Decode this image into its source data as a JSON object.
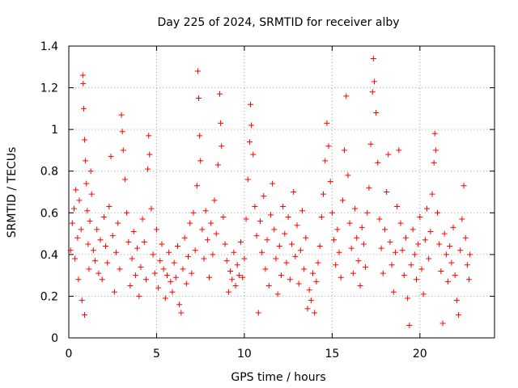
{
  "chart_data": {
    "type": "scatter",
    "title": "Day 225 of 2024, SRMTID for receiver alby",
    "xlabel": "GPS time / hours",
    "ylabel": "SRMTID / TECUs",
    "xlim": [
      0,
      24.25
    ],
    "ylim": [
      0,
      1.4
    ],
    "xticks": [
      0,
      5,
      10,
      15,
      20
    ],
    "xtick_labels": [
      "0",
      "5",
      "10",
      "15",
      "20"
    ],
    "yticks": [
      0,
      0.2,
      0.4,
      0.6,
      0.8,
      1.0,
      1.2,
      1.4
    ],
    "ytick_labels": [
      "0",
      "0.2",
      "0.4",
      "0.6",
      "0.8",
      "1",
      "1.2",
      "1.4"
    ],
    "grid": true,
    "marker": "+",
    "color": "#ff0000",
    "series": [
      {
        "name": "SRMTID",
        "points": [
          [
            0.1,
            0.42
          ],
          [
            0.2,
            0.55
          ],
          [
            0.3,
            0.62
          ],
          [
            0.35,
            0.38
          ],
          [
            0.4,
            0.71
          ],
          [
            0.5,
            0.48
          ],
          [
            0.55,
            0.28
          ],
          [
            0.6,
            0.66
          ],
          [
            0.7,
            0.52
          ],
          [
            0.75,
            0.18
          ],
          [
            0.8,
            1.26
          ],
          [
            0.82,
            1.22
          ],
          [
            0.85,
            1.1
          ],
          [
            0.9,
            0.95
          ],
          [
            0.95,
            0.85
          ],
          [
            1.0,
            0.74
          ],
          [
            1.05,
            0.61
          ],
          [
            1.1,
            0.45
          ],
          [
            1.15,
            0.33
          ],
          [
            1.2,
            0.56
          ],
          [
            0.9,
            0.11
          ],
          [
            1.25,
            0.8
          ],
          [
            1.3,
            0.69
          ],
          [
            1.4,
            0.42
          ],
          [
            1.5,
            0.37
          ],
          [
            1.6,
            0.52
          ],
          [
            1.7,
            0.31
          ],
          [
            1.8,
            0.47
          ],
          [
            1.9,
            0.28
          ],
          [
            2.0,
            0.58
          ],
          [
            2.1,
            0.44
          ],
          [
            2.2,
            0.36
          ],
          [
            2.3,
            0.63
          ],
          [
            2.4,
            0.87
          ],
          [
            2.5,
            0.49
          ],
          [
            2.6,
            0.22
          ],
          [
            2.7,
            0.41
          ],
          [
            2.8,
            0.55
          ],
          [
            2.9,
            0.33
          ],
          [
            3.0,
            1.07
          ],
          [
            3.05,
            0.99
          ],
          [
            3.1,
            0.9
          ],
          [
            3.2,
            0.76
          ],
          [
            3.3,
            0.6
          ],
          [
            3.4,
            0.46
          ],
          [
            3.5,
            0.25
          ],
          [
            3.6,
            0.38
          ],
          [
            3.7,
            0.51
          ],
          [
            3.8,
            0.3
          ],
          [
            3.9,
            0.43
          ],
          [
            4.0,
            0.2
          ],
          [
            4.1,
            0.34
          ],
          [
            4.2,
            0.57
          ],
          [
            4.3,
            0.46
          ],
          [
            4.4,
            0.28
          ],
          [
            4.5,
            0.81
          ],
          [
            4.55,
            0.97
          ],
          [
            4.6,
            0.88
          ],
          [
            4.7,
            0.62
          ],
          [
            4.8,
            0.4
          ],
          [
            4.9,
            0.31
          ],
          [
            5.0,
            0.52
          ],
          [
            5.1,
            0.24
          ],
          [
            5.2,
            0.37
          ],
          [
            5.3,
            0.45
          ],
          [
            5.4,
            0.33
          ],
          [
            5.5,
            0.19
          ],
          [
            5.6,
            0.3
          ],
          [
            5.7,
            0.41
          ],
          [
            5.8,
            0.27
          ],
          [
            5.9,
            0.22
          ],
          [
            6.0,
            0.36
          ],
          [
            6.1,
            0.29
          ],
          [
            6.2,
            0.44
          ],
          [
            6.3,
            0.16
          ],
          [
            6.4,
            0.12
          ],
          [
            6.5,
            0.33
          ],
          [
            6.6,
            0.48
          ],
          [
            6.7,
            0.26
          ],
          [
            6.8,
            0.39
          ],
          [
            6.9,
            0.55
          ],
          [
            7.0,
            0.31
          ],
          [
            7.1,
            0.6
          ],
          [
            7.2,
            0.42
          ],
          [
            7.3,
            0.73
          ],
          [
            7.35,
            1.28
          ],
          [
            7.4,
            1.15
          ],
          [
            7.45,
            0.97
          ],
          [
            7.5,
            0.85
          ],
          [
            7.6,
            0.52
          ],
          [
            7.7,
            0.38
          ],
          [
            7.8,
            0.61
          ],
          [
            7.9,
            0.47
          ],
          [
            8.0,
            0.29
          ],
          [
            8.1,
            0.55
          ],
          [
            8.2,
            0.4
          ],
          [
            8.3,
            0.66
          ],
          [
            8.4,
            0.5
          ],
          [
            8.5,
            0.83
          ],
          [
            8.6,
            1.17
          ],
          [
            8.65,
            1.03
          ],
          [
            8.7,
            0.92
          ],
          [
            8.8,
            0.58
          ],
          [
            8.9,
            0.45
          ],
          [
            9.0,
            0.37
          ],
          [
            9.1,
            0.22
          ],
          [
            9.2,
            0.32
          ],
          [
            9.3,
            0.28
          ],
          [
            9.4,
            0.41
          ],
          [
            9.5,
            0.25
          ],
          [
            9.6,
            0.35
          ],
          [
            9.7,
            0.3
          ],
          [
            9.8,
            0.46
          ],
          [
            9.9,
            0.29
          ],
          [
            10.0,
            0.38
          ],
          [
            10.1,
            0.57
          ],
          [
            10.2,
            0.76
          ],
          [
            10.3,
            0.94
          ],
          [
            10.35,
            1.12
          ],
          [
            10.4,
            1.02
          ],
          [
            10.5,
            0.88
          ],
          [
            10.6,
            0.63
          ],
          [
            10.7,
            0.49
          ],
          [
            10.8,
            0.12
          ],
          [
            10.9,
            0.56
          ],
          [
            11.0,
            0.41
          ],
          [
            11.1,
            0.68
          ],
          [
            11.2,
            0.33
          ],
          [
            11.3,
            0.47
          ],
          [
            11.4,
            0.25
          ],
          [
            11.5,
            0.59
          ],
          [
            11.6,
            0.74
          ],
          [
            11.7,
            0.52
          ],
          [
            11.8,
            0.38
          ],
          [
            11.9,
            0.21
          ],
          [
            12.0,
            0.44
          ],
          [
            12.1,
            0.3
          ],
          [
            12.2,
            0.63
          ],
          [
            12.3,
            0.5
          ],
          [
            12.4,
            0.36
          ],
          [
            12.5,
            0.58
          ],
          [
            12.6,
            0.28
          ],
          [
            12.7,
            0.45
          ],
          [
            12.8,
            0.7
          ],
          [
            12.9,
            0.39
          ],
          [
            13.0,
            0.54
          ],
          [
            13.1,
            0.26
          ],
          [
            13.2,
            0.42
          ],
          [
            13.3,
            0.61
          ],
          [
            13.4,
            0.33
          ],
          [
            13.5,
            0.48
          ],
          [
            13.6,
            0.14
          ],
          [
            13.7,
            0.23
          ],
          [
            13.8,
            0.18
          ],
          [
            13.9,
            0.31
          ],
          [
            14.0,
            0.12
          ],
          [
            14.1,
            0.27
          ],
          [
            14.2,
            0.36
          ],
          [
            14.3,
            0.44
          ],
          [
            14.4,
            0.58
          ],
          [
            14.5,
            0.69
          ],
          [
            14.6,
            0.85
          ],
          [
            14.7,
            1.03
          ],
          [
            14.8,
            0.92
          ],
          [
            14.9,
            0.75
          ],
          [
            15.0,
            0.6
          ],
          [
            15.1,
            0.47
          ],
          [
            15.2,
            0.35
          ],
          [
            15.3,
            0.52
          ],
          [
            15.4,
            0.41
          ],
          [
            15.5,
            0.29
          ],
          [
            15.6,
            0.66
          ],
          [
            15.7,
            0.9
          ],
          [
            15.8,
            1.16
          ],
          [
            15.9,
            0.78
          ],
          [
            16.0,
            0.55
          ],
          [
            16.1,
            0.43
          ],
          [
            16.2,
            0.31
          ],
          [
            16.3,
            0.62
          ],
          [
            16.4,
            0.48
          ],
          [
            16.5,
            0.37
          ],
          [
            16.6,
            0.25
          ],
          [
            16.7,
            0.53
          ],
          [
            16.8,
            0.45
          ],
          [
            16.9,
            0.34
          ],
          [
            17.0,
            0.6
          ],
          [
            17.1,
            0.72
          ],
          [
            17.2,
            0.93
          ],
          [
            17.3,
            1.18
          ],
          [
            17.35,
            1.34
          ],
          [
            17.4,
            1.23
          ],
          [
            17.5,
            1.08
          ],
          [
            17.6,
            0.84
          ],
          [
            17.7,
            0.57
          ],
          [
            17.8,
            0.43
          ],
          [
            17.9,
            0.31
          ],
          [
            18.0,
            0.52
          ],
          [
            18.1,
            0.7
          ],
          [
            18.2,
            0.88
          ],
          [
            18.3,
            0.46
          ],
          [
            18.4,
            0.35
          ],
          [
            18.5,
            0.22
          ],
          [
            18.6,
            0.41
          ],
          [
            18.7,
            0.63
          ],
          [
            18.8,
            0.9
          ],
          [
            18.9,
            0.55
          ],
          [
            19.0,
            0.42
          ],
          [
            19.1,
            0.3
          ],
          [
            19.2,
            0.48
          ],
          [
            19.3,
            0.19
          ],
          [
            19.4,
            0.06
          ],
          [
            19.5,
            0.35
          ],
          [
            19.6,
            0.52
          ],
          [
            19.7,
            0.4
          ],
          [
            19.8,
            0.28
          ],
          [
            19.9,
            0.45
          ],
          [
            20.0,
            0.58
          ],
          [
            20.1,
            0.33
          ],
          [
            20.2,
            0.21
          ],
          [
            20.3,
            0.47
          ],
          [
            20.4,
            0.62
          ],
          [
            20.5,
            0.38
          ],
          [
            20.6,
            0.51
          ],
          [
            20.7,
            0.69
          ],
          [
            20.8,
            0.84
          ],
          [
            20.85,
            0.98
          ],
          [
            20.9,
            0.9
          ],
          [
            21.0,
            0.6
          ],
          [
            21.1,
            0.45
          ],
          [
            21.2,
            0.32
          ],
          [
            21.3,
            0.07
          ],
          [
            21.4,
            0.5
          ],
          [
            21.5,
            0.4
          ],
          [
            21.6,
            0.27
          ],
          [
            21.7,
            0.44
          ],
          [
            21.8,
            0.36
          ],
          [
            21.9,
            0.53
          ],
          [
            22.0,
            0.3
          ],
          [
            22.1,
            0.18
          ],
          [
            22.2,
            0.11
          ],
          [
            22.3,
            0.42
          ],
          [
            22.4,
            0.57
          ],
          [
            22.5,
            0.73
          ],
          [
            22.6,
            0.48
          ],
          [
            22.7,
            0.35
          ],
          [
            22.8,
            0.28
          ],
          [
            22.85,
            0.4
          ]
        ]
      }
    ]
  }
}
